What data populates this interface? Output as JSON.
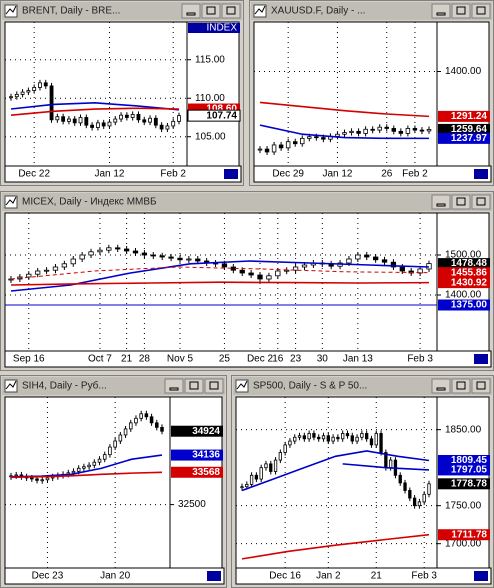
{
  "chart_data": [
    {
      "type": "candlestick",
      "title": "BRENT, Daily - BRE...",
      "axis_caption": "INDEX",
      "categories": [
        null,
        null,
        null,
        null,
        "Dec 22",
        null,
        null,
        null,
        null,
        null,
        null,
        null,
        null,
        null,
        null,
        null,
        null,
        "Jan 12",
        null,
        null,
        null,
        null,
        null,
        null,
        null,
        null,
        null,
        null,
        "Feb 2",
        null
      ],
      "values": [
        110.2,
        110.5,
        110.8,
        111.0,
        111.4,
        112.0,
        111.6,
        107.2,
        107.6,
        107.0,
        107.3,
        106.8,
        107.5,
        106.5,
        106.2,
        106.8,
        106.4,
        106.9,
        107.3,
        107.8,
        107.5,
        107.9,
        107.2,
        106.9,
        107.4,
        106.5,
        106.0,
        106.4,
        107.0,
        107.74
      ],
      "ylim": [
        101.2,
        119.9
      ],
      "yticks": [
        {
          "value": 105,
          "label": "105.00"
        },
        {
          "value": 110,
          "label": "110.00"
        },
        {
          "value": 115,
          "label": "115.00"
        }
      ],
      "overlays": [
        {
          "color": "#0000cc",
          "values": [
            108.6,
            109.2,
            109.4,
            109.0,
            108.5
          ]
        },
        {
          "color": "#d40000",
          "values": [
            107.8,
            108.3,
            108.6,
            108.7,
            108.6
          ]
        }
      ],
      "tags": [
        {
          "value": 108.6,
          "label": "108.60",
          "color": "#d40000"
        },
        {
          "value": 107.74,
          "label": "107.74",
          "color": "#ffffff"
        }
      ]
    },
    {
      "type": "candlestick",
      "title": "XAUUSD.F, Daily - ...",
      "categories": [
        null,
        null,
        null,
        null,
        "Dec 29",
        null,
        null,
        null,
        null,
        null,
        null,
        "Jan 12",
        null,
        null,
        null,
        null,
        null,
        null,
        "26",
        null,
        null,
        null,
        "Feb 2",
        null,
        null
      ],
      "values": [
        1212,
        1205,
        1222,
        1215,
        1230,
        1225,
        1238,
        1242,
        1240,
        1236,
        1243,
        1248,
        1252,
        1255,
        1250,
        1260,
        1258,
        1265,
        1262,
        1255,
        1250,
        1262,
        1258,
        1256,
        1259.64
      ],
      "ylim": [
        1171,
        1520
      ],
      "yticks": [
        {
          "value": 1400,
          "label": "1400.00"
        }
      ],
      "overlays": [
        {
          "color": "#d40000",
          "values": [
            1325,
            1315,
            1305,
            1297,
            1291.24
          ]
        },
        {
          "color": "#0000cc",
          "values": [
            1270,
            1248,
            1240,
            1238,
            1237.97
          ]
        }
      ],
      "tags": [
        {
          "value": 1291.24,
          "label": "1291.24",
          "color": "#d40000"
        },
        {
          "value": 1259.64,
          "label": "1259.64",
          "color": "#000000"
        },
        {
          "value": 1237.97,
          "label": "1237.97",
          "color": "#0000cc"
        }
      ]
    },
    {
      "type": "candlestick",
      "title": "MICEX, Daily - Индекс ММВБ",
      "categories": [
        null,
        null,
        "Sep 16",
        null,
        null,
        null,
        null,
        null,
        null,
        null,
        "Oct 7",
        null,
        null,
        "21",
        null,
        "28",
        null,
        null,
        null,
        "Nov 5",
        null,
        null,
        null,
        null,
        "25",
        null,
        null,
        null,
        "Dec 2",
        null,
        "16",
        null,
        "23",
        null,
        null,
        "30",
        null,
        null,
        null,
        "Jan 13",
        null,
        null,
        null,
        null,
        null,
        null,
        "Feb 3",
        null
      ],
      "values": [
        1440,
        1445,
        1452,
        1460,
        1462,
        1470,
        1478,
        1490,
        1500,
        1508,
        1512,
        1518,
        1515,
        1510,
        1505,
        1500,
        1498,
        1495,
        1492,
        1488,
        1490,
        1485,
        1480,
        1478,
        1470,
        1462,
        1455,
        1450,
        1440,
        1448,
        1460,
        1462,
        1470,
        1475,
        1480,
        1478,
        1472,
        1480,
        1490,
        1500,
        1495,
        1488,
        1482,
        1470,
        1460,
        1455,
        1465,
        1478.48
      ],
      "ylim": [
        1260,
        1605
      ],
      "yticks": [
        {
          "value": 1400,
          "label": "1400.00"
        },
        {
          "value": 1500,
          "label": "1500.00"
        }
      ],
      "overlays": [
        {
          "color": "#0000cc",
          "values": [
            1410,
            1425,
            1455,
            1478,
            1485,
            1480,
            1475,
            1470
          ]
        },
        {
          "color": "#d40000",
          "values": [
            1425,
            1428,
            1430,
            1432,
            1431,
            1430,
            1430.92
          ]
        },
        {
          "color": "#d40000",
          "dashed": true,
          "values": [
            1440,
            1460,
            1470,
            1465,
            1458,
            1455.86
          ]
        }
      ],
      "tags": [
        {
          "value": 1478.48,
          "label": "1478.48",
          "color": "#000000"
        },
        {
          "value": 1455.86,
          "label": "1455.86",
          "color": "#d40000"
        },
        {
          "value": 1430.92,
          "label": "1430.92",
          "color": "#d40000"
        },
        {
          "value": 1375,
          "label": "1375.00",
          "color": "#0000cc",
          "line": true
        }
      ]
    },
    {
      "type": "candlestick",
      "title": "SIH4, Daily - Руб...",
      "categories": [
        null,
        null,
        null,
        null,
        null,
        null,
        null,
        "Dec 23",
        null,
        null,
        null,
        null,
        null,
        null,
        null,
        null,
        null,
        null,
        null,
        null,
        "Jan 20",
        null,
        null,
        null,
        null,
        null,
        null,
        null,
        null,
        null
      ],
      "values": [
        33450,
        33480,
        33420,
        33380,
        33350,
        33300,
        33320,
        33380,
        33420,
        33460,
        33500,
        33550,
        33600,
        33700,
        33750,
        33800,
        33900,
        34000,
        34150,
        34400,
        34600,
        34800,
        35000,
        35200,
        35350,
        35500,
        35400,
        35200,
        35050,
        34924
      ],
      "ylim": [
        30406,
        36054
      ],
      "yticks": [
        32500
      ],
      "overlays": [
        {
          "color": "#0000cc",
          "values": [
            33420,
            33440,
            33500,
            33700,
            34000,
            34136
          ]
        },
        {
          "color": "#d40000",
          "values": [
            33400,
            33420,
            33450,
            33500,
            33540,
            33568
          ]
        }
      ],
      "tags": [
        {
          "value": 34924,
          "color": "#000000"
        },
        {
          "value": 34136,
          "color": "#0000cc"
        },
        {
          "value": 33568,
          "color": "#d40000"
        }
      ]
    },
    {
      "type": "candlestick",
      "title": "SP500, Daily - S & P 50...",
      "categories": [
        null,
        null,
        null,
        null,
        null,
        null,
        null,
        null,
        null,
        "Dec 16",
        null,
        null,
        null,
        null,
        null,
        null,
        null,
        null,
        "Jan 2",
        null,
        null,
        null,
        null,
        null,
        null,
        null,
        null,
        null,
        "21",
        null,
        null,
        null,
        null,
        null,
        null,
        null,
        null,
        null,
        "Feb 3",
        null
      ],
      "values": [
        1775,
        1778,
        1790,
        1785,
        1800,
        1805,
        1795,
        1810,
        1820,
        1830,
        1835,
        1840,
        1842,
        1838,
        1845,
        1840,
        1838,
        1842,
        1835,
        1840,
        1838,
        1845,
        1842,
        1835,
        1840,
        1845,
        1838,
        1830,
        1845,
        1820,
        1800,
        1810,
        1790,
        1780,
        1770,
        1760,
        1750,
        1755,
        1765,
        1778.78
      ],
      "ylim": [
        1668,
        1893
      ],
      "yticks": [
        {
          "value": 1700,
          "label": "1700.00"
        },
        {
          "value": 1750,
          "label": "1750.00"
        },
        {
          "value": 1850,
          "label": "1850.00"
        }
      ],
      "overlays": [
        {
          "color": "#0000cc",
          "values": [
            1770,
            1785,
            1800,
            1815,
            1822,
            1815,
            1809.45
          ]
        },
        {
          "color": "#0000cc",
          "values": [
            1805,
            1800,
            1797.05
          ]
        },
        {
          "color": "#d40000",
          "values": [
            1680,
            1690,
            1698,
            1705,
            1711.78
          ]
        }
      ],
      "tags": [
        {
          "value": 1809.45,
          "label": "1809.45",
          "color": "#0000cc"
        },
        {
          "value": 1797.05,
          "label": "1797.05",
          "color": "#0000cc"
        },
        {
          "value": 1778.78,
          "label": "1778.78",
          "color": "#000000"
        },
        {
          "value": 1711.78,
          "label": "1711.78",
          "color": "#d40000"
        }
      ]
    }
  ]
}
